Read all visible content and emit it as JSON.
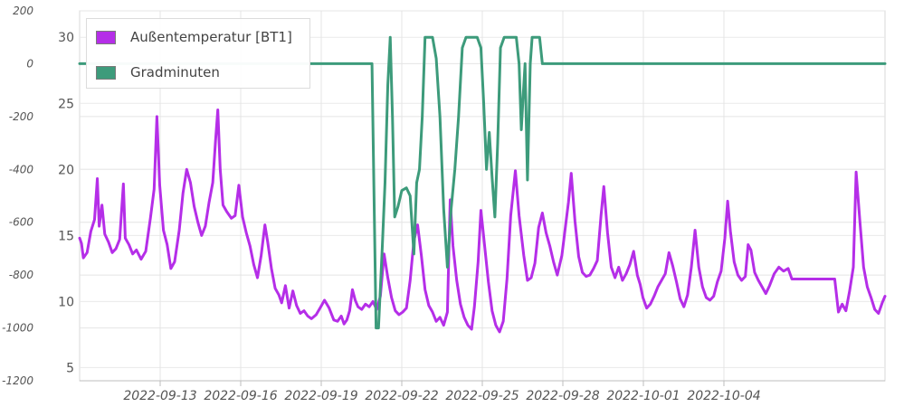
{
  "chart_data": {
    "type": "line",
    "title": "",
    "legend": {
      "placement": "top-left",
      "items": [
        {
          "name": "Außentemperatur [BT1]",
          "color": "#b52ee8"
        },
        {
          "name": "Gradminuten",
          "color": "#3d9b7b"
        }
      ]
    },
    "x_axis": {
      "tick_labels": [
        "2022-09-13",
        "2022-09-16",
        "2022-09-19",
        "2022-09-22",
        "2022-09-25",
        "2022-09-28",
        "2022-10-01",
        "2022-10-04"
      ]
    },
    "y_left": {
      "tick_labels": [
        "200",
        "0",
        "-200",
        "-400",
        "-600",
        "-800",
        "-1000",
        "-1200"
      ],
      "range": [
        -1200,
        200
      ]
    },
    "y_right": {
      "tick_labels": [
        "30",
        "25",
        "20",
        "15",
        "10",
        "5"
      ],
      "range": [
        4,
        32
      ]
    },
    "grid": true,
    "series": [
      {
        "name": "Außentemperatur [BT1]",
        "axis": "right",
        "color": "#b52ee8",
        "points": [
          [
            0.0,
            14.8
          ],
          [
            0.1,
            14.4
          ],
          [
            0.2,
            13.3
          ],
          [
            0.4,
            13.7
          ],
          [
            0.6,
            15.3
          ],
          [
            0.8,
            16.2
          ],
          [
            0.95,
            19.3
          ],
          [
            1.05,
            15.7
          ],
          [
            1.2,
            17.3
          ],
          [
            1.35,
            15.1
          ],
          [
            1.55,
            14.5
          ],
          [
            1.75,
            13.7
          ],
          [
            1.95,
            14.0
          ],
          [
            2.15,
            14.7
          ],
          [
            2.35,
            18.9
          ],
          [
            2.45,
            14.8
          ],
          [
            2.65,
            14.3
          ],
          [
            2.85,
            13.6
          ],
          [
            3.05,
            13.9
          ],
          [
            3.3,
            13.2
          ],
          [
            3.55,
            13.8
          ],
          [
            3.8,
            16.3
          ],
          [
            4.0,
            18.5
          ],
          [
            4.15,
            24.0
          ],
          [
            4.3,
            18.8
          ],
          [
            4.5,
            15.4
          ],
          [
            4.7,
            14.3
          ],
          [
            4.9,
            12.5
          ],
          [
            5.1,
            13.0
          ],
          [
            5.35,
            15.4
          ],
          [
            5.55,
            18.2
          ],
          [
            5.75,
            20.0
          ],
          [
            5.95,
            19.0
          ],
          [
            6.15,
            17.2
          ],
          [
            6.35,
            16.0
          ],
          [
            6.55,
            15.0
          ],
          [
            6.75,
            15.7
          ],
          [
            6.95,
            17.5
          ],
          [
            7.15,
            19.0
          ],
          [
            7.3,
            22.2
          ],
          [
            7.42,
            24.5
          ],
          [
            7.55,
            20.0
          ],
          [
            7.7,
            17.3
          ],
          [
            7.9,
            16.8
          ],
          [
            8.15,
            16.3
          ],
          [
            8.35,
            16.5
          ],
          [
            8.55,
            18.8
          ],
          [
            8.75,
            16.4
          ],
          [
            8.95,
            15.2
          ],
          [
            9.15,
            14.2
          ],
          [
            9.35,
            12.8
          ],
          [
            9.55,
            11.8
          ],
          [
            9.75,
            13.5
          ],
          [
            9.95,
            15.8
          ],
          [
            10.1,
            14.5
          ],
          [
            10.3,
            12.5
          ],
          [
            10.5,
            11.0
          ],
          [
            10.7,
            10.5
          ],
          [
            10.85,
            9.9
          ],
          [
            11.05,
            11.2
          ],
          [
            11.25,
            9.5
          ],
          [
            11.45,
            10.8
          ],
          [
            11.65,
            9.7
          ],
          [
            11.85,
            9.1
          ],
          [
            12.05,
            9.3
          ],
          [
            12.25,
            8.9
          ],
          [
            12.45,
            8.7
          ],
          [
            12.7,
            9.0
          ],
          [
            12.95,
            9.6
          ],
          [
            13.15,
            10.1
          ],
          [
            13.4,
            9.5
          ],
          [
            13.65,
            8.6
          ],
          [
            13.85,
            8.5
          ],
          [
            14.05,
            8.9
          ],
          [
            14.2,
            8.3
          ],
          [
            14.35,
            8.6
          ],
          [
            14.5,
            9.3
          ],
          [
            14.65,
            10.9
          ],
          [
            14.8,
            10.1
          ],
          [
            14.95,
            9.6
          ],
          [
            15.15,
            9.4
          ],
          [
            15.35,
            9.8
          ],
          [
            15.55,
            9.6
          ],
          [
            15.75,
            10.0
          ],
          [
            15.95,
            9.4
          ],
          [
            16.15,
            10.4
          ],
          [
            16.35,
            13.6
          ],
          [
            16.55,
            11.8
          ],
          [
            16.75,
            10.3
          ],
          [
            16.95,
            9.3
          ],
          [
            17.15,
            9.0
          ],
          [
            17.35,
            9.2
          ],
          [
            17.55,
            9.5
          ],
          [
            17.75,
            11.6
          ],
          [
            17.95,
            14.6
          ],
          [
            18.15,
            15.8
          ],
          [
            18.35,
            13.5
          ],
          [
            18.55,
            10.9
          ],
          [
            18.75,
            9.7
          ],
          [
            18.95,
            9.2
          ],
          [
            19.15,
            8.5
          ],
          [
            19.35,
            8.8
          ],
          [
            19.55,
            8.2
          ],
          [
            19.75,
            9.2
          ],
          [
            19.9,
            17.7
          ],
          [
            20.05,
            14.2
          ],
          [
            20.25,
            11.6
          ],
          [
            20.45,
            9.8
          ],
          [
            20.65,
            8.8
          ],
          [
            20.85,
            8.2
          ],
          [
            21.05,
            7.9
          ],
          [
            21.2,
            9.6
          ],
          [
            21.4,
            13.0
          ],
          [
            21.55,
            16.9
          ],
          [
            21.75,
            14.2
          ],
          [
            21.95,
            11.5
          ],
          [
            22.15,
            9.3
          ],
          [
            22.35,
            8.2
          ],
          [
            22.55,
            7.7
          ],
          [
            22.75,
            8.5
          ],
          [
            22.95,
            11.7
          ],
          [
            23.15,
            16.5
          ],
          [
            23.4,
            19.9
          ],
          [
            23.6,
            16.5
          ],
          [
            23.85,
            13.5
          ],
          [
            24.05,
            11.6
          ],
          [
            24.25,
            11.8
          ],
          [
            24.45,
            12.9
          ],
          [
            24.65,
            15.6
          ],
          [
            24.85,
            16.7
          ],
          [
            25.05,
            15.2
          ],
          [
            25.25,
            14.2
          ],
          [
            25.45,
            13.0
          ],
          [
            25.65,
            12.0
          ],
          [
            25.9,
            13.5
          ],
          [
            26.1,
            15.8
          ],
          [
            26.25,
            17.5
          ],
          [
            26.4,
            19.7
          ],
          [
            26.6,
            16.1
          ],
          [
            26.8,
            13.4
          ],
          [
            27.0,
            12.2
          ],
          [
            27.2,
            11.9
          ],
          [
            27.4,
            12.0
          ],
          [
            27.6,
            12.5
          ],
          [
            27.8,
            13.1
          ],
          [
            28.0,
            16.5
          ],
          [
            28.15,
            18.7
          ],
          [
            28.35,
            15.2
          ],
          [
            28.55,
            12.6
          ],
          [
            28.75,
            11.8
          ],
          [
            28.95,
            12.6
          ],
          [
            29.15,
            11.6
          ],
          [
            29.35,
            12.1
          ],
          [
            29.55,
            12.8
          ],
          [
            29.75,
            13.8
          ],
          [
            29.95,
            12.0
          ],
          [
            30.1,
            11.3
          ],
          [
            30.25,
            10.3
          ],
          [
            30.45,
            9.5
          ],
          [
            30.65,
            9.8
          ],
          [
            30.85,
            10.4
          ],
          [
            31.05,
            11.1
          ],
          [
            31.25,
            11.6
          ],
          [
            31.45,
            12.1
          ],
          [
            31.65,
            13.7
          ],
          [
            31.85,
            12.7
          ],
          [
            32.05,
            11.5
          ],
          [
            32.25,
            10.2
          ],
          [
            32.45,
            9.6
          ],
          [
            32.65,
            10.5
          ],
          [
            32.85,
            12.6
          ],
          [
            33.05,
            15.4
          ],
          [
            33.25,
            12.6
          ],
          [
            33.45,
            11.1
          ],
          [
            33.65,
            10.3
          ],
          [
            33.85,
            10.1
          ],
          [
            34.05,
            10.4
          ],
          [
            34.25,
            11.5
          ],
          [
            34.45,
            12.3
          ],
          [
            34.65,
            14.8
          ],
          [
            34.8,
            17.6
          ],
          [
            34.95,
            15.3
          ],
          [
            35.15,
            13.0
          ],
          [
            35.35,
            12.0
          ],
          [
            35.55,
            11.6
          ],
          [
            35.75,
            11.9
          ],
          [
            35.9,
            14.3
          ],
          [
            36.05,
            13.9
          ],
          [
            36.25,
            12.2
          ],
          [
            36.45,
            11.6
          ],
          [
            36.65,
            11.1
          ],
          [
            36.85,
            10.6
          ],
          [
            37.05,
            11.2
          ],
          [
            37.3,
            12.1
          ],
          [
            37.55,
            12.6
          ],
          [
            37.8,
            12.3
          ],
          [
            38.05,
            12.5
          ],
          [
            38.25,
            11.7
          ],
          [
            38.45,
            11.7
          ],
          [
            38.7,
            11.7
          ],
          [
            38.95,
            11.7
          ],
          [
            39.2,
            11.7
          ],
          [
            39.45,
            11.7
          ],
          [
            39.7,
            11.7
          ],
          [
            39.95,
            11.7
          ],
          [
            40.15,
            11.7
          ],
          [
            40.35,
            11.7
          ],
          [
            40.55,
            11.7
          ],
          [
            40.75,
            9.2
          ],
          [
            40.95,
            9.8
          ],
          [
            41.15,
            9.3
          ],
          [
            41.35,
            10.8
          ],
          [
            41.55,
            12.6
          ],
          [
            41.7,
            19.8
          ],
          [
            41.9,
            16.1
          ],
          [
            42.1,
            12.6
          ],
          [
            42.3,
            11.1
          ],
          [
            42.5,
            10.3
          ],
          [
            42.7,
            9.4
          ],
          [
            42.9,
            9.1
          ],
          [
            43.1,
            9.9
          ],
          [
            43.25,
            10.4
          ]
        ]
      },
      {
        "name": "Gradminuten",
        "axis": "left",
        "color": "#3d9b7b",
        "points": [
          [
            0.0,
            0
          ],
          [
            15.7,
            0
          ],
          [
            15.92,
            -1000
          ],
          [
            16.05,
            -1000
          ],
          [
            16.25,
            -700
          ],
          [
            16.4,
            -450
          ],
          [
            16.55,
            -80
          ],
          [
            16.68,
            100
          ],
          [
            16.8,
            -200
          ],
          [
            16.92,
            -580
          ],
          [
            17.1,
            -540
          ],
          [
            17.3,
            -480
          ],
          [
            17.55,
            -470
          ],
          [
            17.75,
            -500
          ],
          [
            17.95,
            -720
          ],
          [
            18.1,
            -450
          ],
          [
            18.25,
            -400
          ],
          [
            18.4,
            -200
          ],
          [
            18.55,
            100
          ],
          [
            18.75,
            100
          ],
          [
            18.95,
            100
          ],
          [
            19.15,
            20
          ],
          [
            19.35,
            -200
          ],
          [
            19.55,
            -550
          ],
          [
            19.75,
            -770
          ],
          [
            19.95,
            -550
          ],
          [
            20.15,
            -400
          ],
          [
            20.35,
            -200
          ],
          [
            20.55,
            60
          ],
          [
            20.75,
            100
          ],
          [
            20.95,
            100
          ],
          [
            21.15,
            100
          ],
          [
            21.35,
            100
          ],
          [
            21.55,
            60
          ],
          [
            21.7,
            -150
          ],
          [
            21.85,
            -400
          ],
          [
            22.0,
            -260
          ],
          [
            22.15,
            -430
          ],
          [
            22.3,
            -580
          ],
          [
            22.45,
            -300
          ],
          [
            22.6,
            60
          ],
          [
            22.8,
            100
          ],
          [
            23.05,
            100
          ],
          [
            23.25,
            100
          ],
          [
            23.45,
            100
          ],
          [
            23.6,
            0
          ],
          [
            23.72,
            -250
          ],
          [
            23.82,
            -120
          ],
          [
            23.92,
            0
          ],
          [
            24.05,
            -440
          ],
          [
            24.2,
            0
          ],
          [
            24.3,
            100
          ],
          [
            24.5,
            100
          ],
          [
            24.7,
            100
          ],
          [
            24.85,
            0
          ],
          [
            26.0,
            0
          ],
          [
            30.0,
            0
          ],
          [
            35.0,
            0
          ],
          [
            40.0,
            0
          ],
          [
            43.25,
            0
          ]
        ]
      }
    ]
  }
}
